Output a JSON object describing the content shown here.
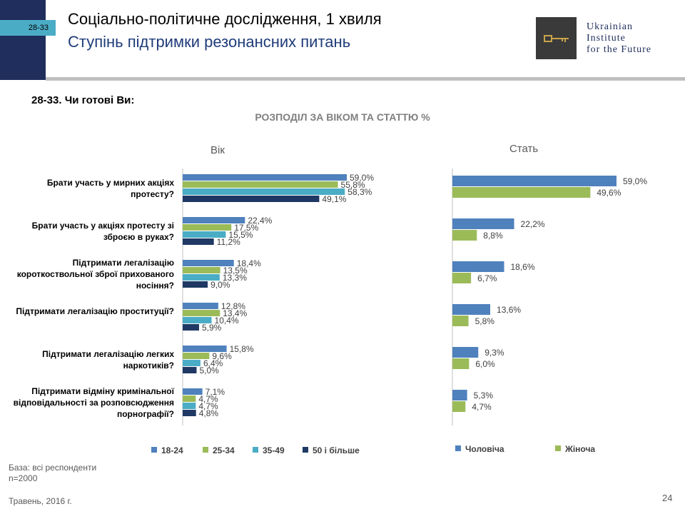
{
  "header": {
    "slide_tag": "28-33",
    "title": "Соціально-політичне дослідження, 1 хвиля",
    "subtitle": "Ступінь підтримки резонансних питань"
  },
  "logo": {
    "line1": "Ukrainian",
    "line2": "Institute",
    "line3": "for the Future"
  },
  "question": "28-33. Чи готові Ви:",
  "colors": {
    "c1824": "#4f81bd",
    "c2534": "#9bbb59",
    "c3549": "#4bacc6",
    "c50": "#1f3864",
    "male": "#4f81bd",
    "female": "#9bbb59"
  },
  "chart_data": [
    {
      "type": "bar",
      "orientation": "horizontal",
      "title": "РОЗПОДІЛ ЗА  ВІКОМ ТА СТАТТЮ %",
      "panel_title": "Вік",
      "categories": [
        "Брати участь у мирних акціях протесту?",
        "Брати участь у акціях протесту зі зброєю в руках?",
        "Підтримати легалізацію короткоствольної зброї прихованого носіння?",
        "Підтримати легалізацію проституції?",
        "Підтримати легалізацію легких наркотиків?",
        "Підтримати відміну кримінальної відповідальності за розповсюдження порнографії?"
      ],
      "series": [
        {
          "name": "18-24",
          "values": [
            59.0,
            22.4,
            18.4,
            12.8,
            15.8,
            7.1
          ],
          "labels": [
            "59,0%",
            "22,4%",
            "18,4%",
            "12,8%",
            "15,8%",
            "7,1%"
          ]
        },
        {
          "name": "25-34",
          "values": [
            55.8,
            17.5,
            13.5,
            13.4,
            9.6,
            4.7
          ],
          "labels": [
            "55,8%",
            "17,5%",
            "13,5%",
            "13,4%",
            "9,6%",
            "4,7%"
          ]
        },
        {
          "name": "35-49",
          "values": [
            58.3,
            15.5,
            13.3,
            10.4,
            6.4,
            4.7
          ],
          "labels": [
            "58,3%",
            "15,5%",
            "13,3%",
            "10,4%",
            "6,4%",
            "4,7%"
          ]
        },
        {
          "name": "50 і більше",
          "values": [
            49.1,
            11.2,
            9.0,
            5.9,
            5.0,
            4.8
          ],
          "labels": [
            "49,1%",
            "11,2%",
            "9,0%",
            "5,9%",
            "5,0%",
            "4,8%"
          ]
        }
      ],
      "legend": "bottom"
    },
    {
      "type": "bar",
      "orientation": "horizontal",
      "panel_title": "Стать",
      "series": [
        {
          "name": "Чоловіча",
          "values": [
            59.0,
            22.2,
            18.6,
            13.6,
            9.3,
            5.3
          ],
          "labels": [
            "59,0%",
            "22,2%",
            "18,6%",
            "13,6%",
            "9,3%",
            "5,3%"
          ]
        },
        {
          "name": "Жіноча",
          "values": [
            49.6,
            8.8,
            6.7,
            5.8,
            6.0,
            4.7
          ],
          "labels": [
            "49,6%",
            "8,8%",
            "6,7%",
            "5,8%",
            "6,0%",
            "4,7%"
          ]
        }
      ],
      "legend": "bottom"
    }
  ],
  "footer": {
    "base_line1": "База: всі респонденти",
    "base_line2": "n=2000",
    "date": "Травень, 2016 г.",
    "page": "24"
  }
}
